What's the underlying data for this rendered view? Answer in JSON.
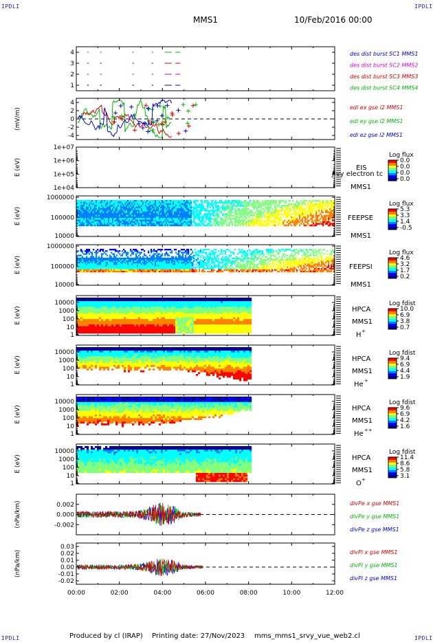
{
  "header": {
    "corner_label": "IPDLI",
    "spacecraft": "MMS1",
    "datetime": "10/Feb/2016 00:00"
  },
  "footer": {
    "produced": "Produced by cl (IRAP)",
    "printing": "Printing date: 27/Nov/2023",
    "file": "mms_mms1_srvy_vue_web2.cl"
  },
  "colors": {
    "blue": "#0000c8",
    "magenta": "#d400d4",
    "red": "#d40000",
    "green": "#00b400",
    "spectrogram_scale": [
      "#00008c",
      "#0000ff",
      "#0080ff",
      "#00ffff",
      "#80ff80",
      "#ffff00",
      "#ff8000",
      "#ff0000"
    ]
  },
  "chart_data": [
    {
      "type": "scatter",
      "panel": "burst",
      "y_ticks": [
        "4",
        "3",
        "2",
        "1"
      ],
      "ylim": [
        0.5,
        4.5
      ],
      "series": [
        {
          "name": "des dist burst SC1 MMS1",
          "color": "#0000c8",
          "y": 1
        },
        {
          "name": "des dist burst SC2 MMS2",
          "color": "#d400d4",
          "y": 2
        },
        {
          "name": "des dist burst SC3 MMS3",
          "color": "#d40000",
          "y": 3
        },
        {
          "name": "des dist burst SC4 MMS4",
          "color": "#00b400",
          "y": 4
        }
      ],
      "segments_hours": [
        [
          0.08,
          0.1
        ],
        [
          0.5,
          0.55
        ],
        [
          1.1,
          1.15
        ],
        [
          2.6,
          2.65
        ],
        [
          3.5,
          3.55
        ],
        [
          4.1,
          4.4
        ],
        [
          4.6,
          4.8
        ]
      ]
    },
    {
      "type": "line",
      "panel": "edi",
      "ylabel": "(mV/m)",
      "y_ticks": [
        "4",
        "2",
        "0",
        "-2",
        "-4"
      ],
      "ylim": [
        -5,
        5
      ],
      "series": [
        {
          "name": "edi ex gse l2 MMS1",
          "color": "#d40000"
        },
        {
          "name": "edi ey gse l2 MMS1",
          "color": "#00b400"
        },
        {
          "name": "edi ez gse l2 MMS1",
          "color": "#0000c8"
        }
      ],
      "active_range_hours": [
        0,
        5.7
      ]
    },
    {
      "type": "heatmap",
      "panel": "eis",
      "ylabel": "E (eV)",
      "y_ticks": [
        "1e+07",
        "1e+06",
        "1e+05",
        "1e+04"
      ],
      "instrument": "EIS",
      "spacecraft": "MMS1",
      "overlay_text": "Jivy electron tc",
      "colorbar_title": "Log flux",
      "colorbar_ticks": [
        "0.0",
        "0.0",
        "0.0",
        "0.0"
      ]
    },
    {
      "type": "heatmap",
      "panel": "feepse",
      "ylabel": "E (eV)",
      "y_ticks": [
        "1000000",
        "100000",
        "10000"
      ],
      "instrument": "FEEPSE",
      "spacecraft": "MMS1",
      "colorbar_title": "Log flux",
      "colorbar_ticks": [
        "5.3",
        "3.3",
        "1.4",
        "-0.5"
      ],
      "data_range_hours": [
        0,
        12
      ]
    },
    {
      "type": "heatmap",
      "panel": "feepsi",
      "ylabel": "E (eV)",
      "y_ticks": [
        "1000000",
        "100000",
        "10000"
      ],
      "instrument": "FEEPSI",
      "spacecraft": "MMS1",
      "colorbar_title": "Log flux",
      "colorbar_ticks": [
        "4.6",
        "3.2",
        "1.7",
        "0.2"
      ],
      "data_range_hours": [
        0,
        12
      ]
    },
    {
      "type": "heatmap",
      "panel": "hpca_h",
      "ylabel": "E (eV)",
      "y_ticks": [
        "10000",
        "1000",
        "100",
        "10",
        "1"
      ],
      "instrument": "HPCA",
      "spacecraft": "MMS1",
      "species": "H",
      "species_sup": "+",
      "colorbar_title": "Log fdist",
      "colorbar_ticks": [
        "10.0",
        "6.9",
        "3.8",
        "0.7"
      ],
      "data_range_hours": [
        0,
        8.1
      ]
    },
    {
      "type": "heatmap",
      "panel": "hpca_he",
      "ylabel": "E (eV)",
      "y_ticks": [
        "10000",
        "1000",
        "100",
        "10",
        "1"
      ],
      "instrument": "HPCA",
      "spacecraft": "MMS1",
      "species": "He",
      "species_sup": "+",
      "colorbar_title": "Log fdist",
      "colorbar_ticks": [
        "9.4",
        "6.9",
        "4.4",
        "1.9"
      ],
      "data_range_hours": [
        0,
        8.1
      ]
    },
    {
      "type": "heatmap",
      "panel": "hpca_he2",
      "ylabel": "E (eV)",
      "y_ticks": [
        "10000",
        "1000",
        "100",
        "10",
        "1"
      ],
      "instrument": "HPCA",
      "spacecraft": "MMS1",
      "species": "He",
      "species_sup": "++",
      "colorbar_title": "Log fdist",
      "colorbar_ticks": [
        "9.6",
        "6.9",
        "4.2",
        "1.6"
      ],
      "data_range_hours": [
        0,
        8.1
      ]
    },
    {
      "type": "heatmap",
      "panel": "hpca_o",
      "ylabel": "E (eV)",
      "y_ticks": [
        "10000",
        "1000",
        "100",
        "10",
        "1"
      ],
      "instrument": "HPCA",
      "spacecraft": "MMS1",
      "species": "O",
      "species_sup": "+",
      "colorbar_title": "Log fdist",
      "colorbar_ticks": [
        "11.4",
        "8.6",
        "5.8",
        "3.1"
      ],
      "data_range_hours": [
        0,
        8.1
      ]
    },
    {
      "type": "line",
      "panel": "divpe",
      "ylabel": "(nPa/km)",
      "y_ticks": [
        "0.002",
        "0.000",
        "-0.002"
      ],
      "ylim": [
        -0.004,
        0.004
      ],
      "series": [
        {
          "name": "divPe x gse MMS1",
          "color": "#d40000"
        },
        {
          "name": "divPe y gse MMS1",
          "color": "#00b400"
        },
        {
          "name": "divPe z gse MMS1",
          "color": "#0000c8"
        }
      ],
      "active_range_hours": [
        0,
        5.8
      ]
    },
    {
      "type": "line",
      "panel": "divpi",
      "ylabel": "(nPa/km)",
      "y_ticks": [
        "0.03",
        "0.02",
        "0.01",
        "0.00",
        "-0.01",
        "-0.02"
      ],
      "ylim": [
        -0.025,
        0.035
      ],
      "series": [
        {
          "name": "divPi x gse MMS1",
          "color": "#d40000"
        },
        {
          "name": "divPi y gse MMS1",
          "color": "#00b400"
        },
        {
          "name": "divPi z gse MMS1",
          "color": "#0000c8"
        }
      ],
      "active_range_hours": [
        0,
        5.9
      ]
    }
  ],
  "x_axis": {
    "tick_labels": [
      "00:00",
      "02:00",
      "04:00",
      "06:00",
      "08:00",
      "10:00",
      "12:00"
    ],
    "range_hours": [
      0,
      12
    ]
  }
}
